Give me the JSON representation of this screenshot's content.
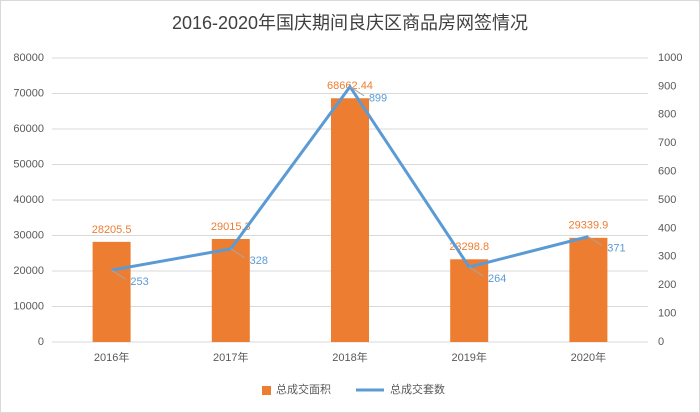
{
  "chart_data": {
    "type": "bar",
    "title": "2016-2020年国庆期间良庆区商品房网签情况",
    "categories": [
      "2016年",
      "2017年",
      "2018年",
      "2019年",
      "2020年"
    ],
    "series": [
      {
        "name": "总成交面积",
        "type": "bar",
        "color": "#ed7d31",
        "values": [
          28205.5,
          29015.3,
          68662.44,
          23298.8,
          29339.9
        ]
      },
      {
        "name": "总成交套数",
        "type": "line",
        "axis": "y2",
        "color": "#5b9bd5",
        "values": [
          253,
          328,
          899,
          264,
          371
        ]
      }
    ],
    "ylim": [
      0,
      80000
    ],
    "yticks": [
      0,
      10000,
      20000,
      30000,
      40000,
      50000,
      60000,
      70000,
      80000
    ],
    "y2lim": [
      0,
      1000
    ],
    "y2ticks": [
      0,
      100,
      200,
      300,
      400,
      500,
      600,
      700,
      800,
      900,
      1000
    ],
    "grid": true,
    "legend": "bottom"
  }
}
